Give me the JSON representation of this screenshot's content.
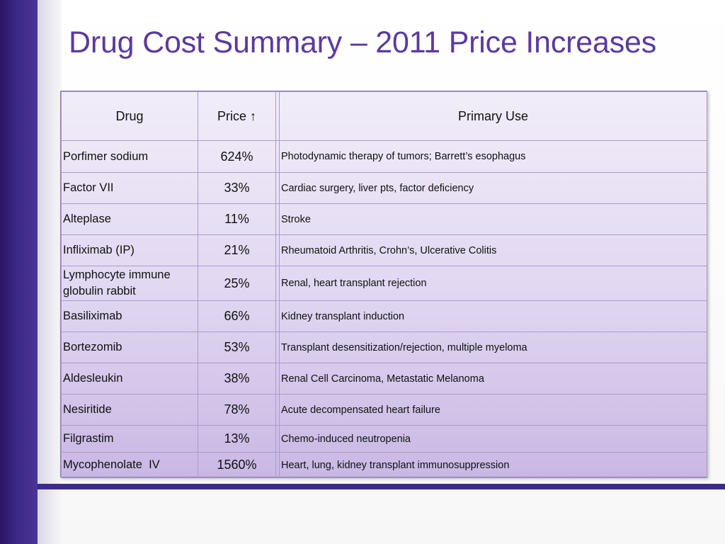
{
  "slide": {
    "title": "Drug Cost Summary – 2011 Price Increases"
  },
  "table": {
    "headers": {
      "drug": "Drug",
      "price": "Price ↑",
      "use": "Primary Use"
    },
    "rows": [
      {
        "drug": "Porfimer sodium",
        "price": "624%",
        "use": "Photodynamic therapy of tumors; Barrett’s esophagus"
      },
      {
        "drug": "Factor VII",
        "price": "33%",
        "use": "Cardiac surgery, liver pts, factor deficiency"
      },
      {
        "drug": "Alteplase",
        "price": "11%",
        "use": "Stroke"
      },
      {
        "drug": "Infliximab (IP)",
        "price": "21%",
        "use": "Rheumatoid Arthritis, Crohn’s, Ulcerative Colitis"
      },
      {
        "drug": "Lymphocyte immune globulin rabbit",
        "price": "25%",
        "use": "Renal, heart transplant rejection"
      },
      {
        "drug": "Basiliximab",
        "price": "66%",
        "use": "Kidney transplant induction"
      },
      {
        "drug": "Bortezomib",
        "price": "53%",
        "use": "Transplant desensitization/rejection, multiple myeloma"
      },
      {
        "drug": "Aldesleukin",
        "price": "38%",
        "use": "Renal Cell Carcinoma, Metastatic Melanoma"
      },
      {
        "drug": "Nesiritide",
        "price": "78%",
        "use": "Acute decompensated heart failure"
      },
      {
        "drug": "Filgrastim",
        "price": "13%",
        "use": "Chemo-induced neutropenia"
      },
      {
        "drug": "Mycophenolate  IV",
        "price": "1560%",
        "use": "Heart, lung, kidney transplant immunosuppression"
      }
    ]
  },
  "colors": {
    "accent": "#3d2b8c",
    "title": "#5b3a9e"
  }
}
